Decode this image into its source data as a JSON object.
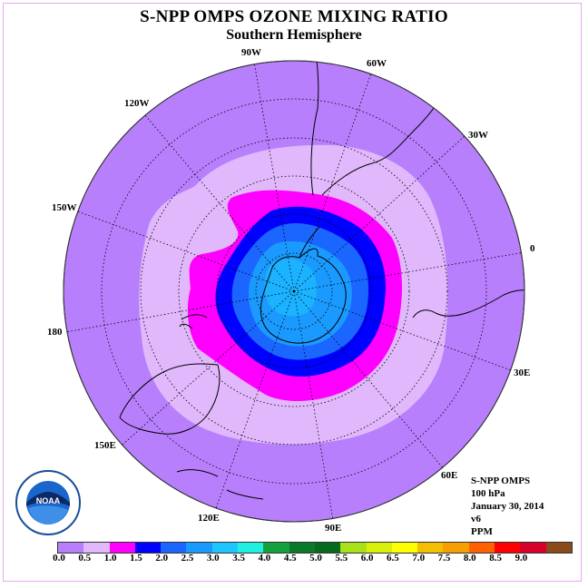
{
  "header": {
    "title": "S-NPP OMPS OZONE MIXING RATIO",
    "subtitle": "Southern Hemisphere"
  },
  "longitude_labels": [
    {
      "id": "90W",
      "text": "90W"
    },
    {
      "id": "60W",
      "text": "60W"
    },
    {
      "id": "30W",
      "text": "30W"
    },
    {
      "id": "0",
      "text": "0"
    },
    {
      "id": "30E",
      "text": "30E"
    },
    {
      "id": "60E",
      "text": "60E"
    },
    {
      "id": "90E",
      "text": "90E"
    },
    {
      "id": "120E",
      "text": "120E"
    },
    {
      "id": "150E",
      "text": "150E"
    },
    {
      "id": "180",
      "text": "180"
    },
    {
      "id": "150W",
      "text": "150W"
    },
    {
      "id": "120W",
      "text": "120W"
    }
  ],
  "info_block": {
    "instrument": "S-NPP OMPS",
    "level": "100 hPa",
    "date": "January 30, 2014",
    "version": "v6",
    "units": "PPM"
  },
  "logo": {
    "text": "NOAA",
    "icon": "noaa-logo"
  },
  "colorbar": {
    "colors": [
      "#b77ffb",
      "#e0b8fb",
      "#ff00ff",
      "#0000ff",
      "#1a66ff",
      "#1a9aff",
      "#1ec6ff",
      "#21f0e0",
      "#15a040",
      "#0a7a2a",
      "#066a1e",
      "#a8e01a",
      "#d8f00a",
      "#ffff00",
      "#f2c000",
      "#f5a000",
      "#ff6000",
      "#ff0000",
      "#d8002a",
      "#8a4a1a"
    ],
    "ticks": [
      "0.0",
      "0.5",
      "1.0",
      "1.5",
      "2.0",
      "2.5",
      "3.0",
      "3.5",
      "4.0",
      "4.5",
      "5.0",
      "5.5",
      "6.0",
      "6.5",
      "7.0",
      "7.5",
      "8.0",
      "8.5",
      "9.0"
    ]
  },
  "map_colors": {
    "outer": "#b77ffb",
    "ring1": "#e0b8fb",
    "ring2": "#ff00ff",
    "ring3": "#0000ff",
    "ring4": "#1a66ff",
    "ring5": "#1a9aff",
    "ring6": "#1ec6ff"
  }
}
